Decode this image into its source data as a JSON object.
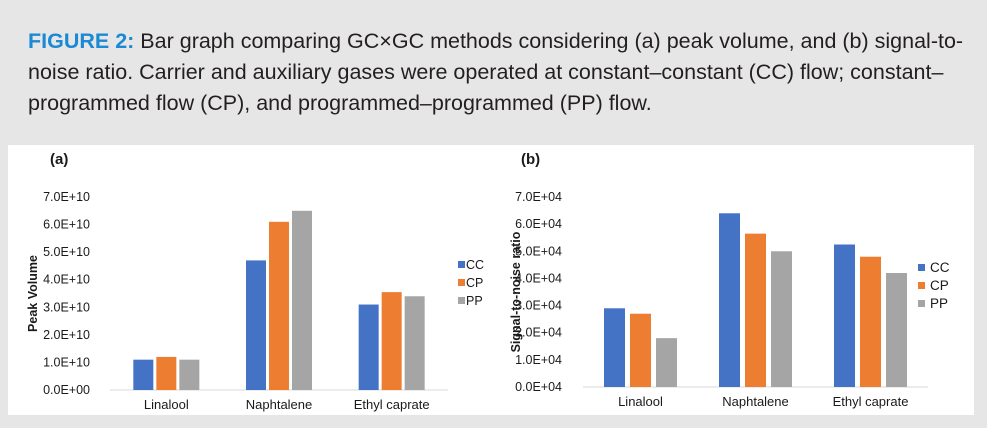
{
  "caption": {
    "label": "FIGURE 2:",
    "text": " Bar graph comparing GC×GC methods considering (a) peak volume, and (b) signal-to-noise ratio. Carrier and auxiliary gases were operated at constant–constant (CC) flow; constant–programmed flow (CP), and programmed–programmed (PP) flow."
  },
  "colors": {
    "CC": "#4472c4",
    "CP": "#ed7d31",
    "PP": "#a5a5a5"
  },
  "chart_data": [
    {
      "type": "bar",
      "panel_label": "(a)",
      "title": "",
      "xlabel": "",
      "ylabel": "Peak Volume",
      "categories": [
        "Linalool",
        "Naphtalene",
        "Ethyl caprate"
      ],
      "series": [
        {
          "name": "CC",
          "values": [
            11000000000.0,
            47000000000.0,
            31000000000.0
          ]
        },
        {
          "name": "CP",
          "values": [
            12000000000.0,
            61000000000.0,
            35500000000.0
          ]
        },
        {
          "name": "PP",
          "values": [
            11000000000.0,
            65000000000.0,
            34000000000.0
          ]
        }
      ],
      "ylim": [
        0,
        70000000000.0
      ],
      "yticks": [
        0,
        10000000000.0,
        20000000000.0,
        30000000000.0,
        40000000000.0,
        50000000000.0,
        60000000000.0,
        70000000000.0
      ],
      "ytick_labels": [
        "0.0E+00",
        "1.0E+10",
        "2.0E+10",
        "3.0E+10",
        "4.0E+10",
        "5.0E+10",
        "6.0E+10",
        "7.0E+10"
      ],
      "legend": [
        "CC",
        "CP",
        "PP"
      ],
      "grid": false
    },
    {
      "type": "bar",
      "panel_label": "(b)",
      "title": "",
      "xlabel": "",
      "ylabel": "Signal-to-noise ratio",
      "categories": [
        "Linalool",
        "Naphtalene",
        "Ethyl caprate"
      ],
      "series": [
        {
          "name": "CC",
          "values": [
            29000,
            64000,
            52500
          ]
        },
        {
          "name": "CP",
          "values": [
            27000,
            56500,
            48000
          ]
        },
        {
          "name": "PP",
          "values": [
            18000,
            50000,
            42000
          ]
        }
      ],
      "ylim": [
        0,
        70000
      ],
      "yticks": [
        0,
        10000,
        20000,
        30000,
        40000,
        50000,
        60000,
        70000
      ],
      "ytick_labels": [
        "0.0E+04",
        "1.0E+04",
        "2.0E+04",
        "3.0E+04",
        "4.0E+04",
        "5.0E+04",
        "6.0E+04",
        "7.0E+04"
      ],
      "legend": [
        "CC",
        "CP",
        "PP"
      ],
      "grid": false
    }
  ]
}
